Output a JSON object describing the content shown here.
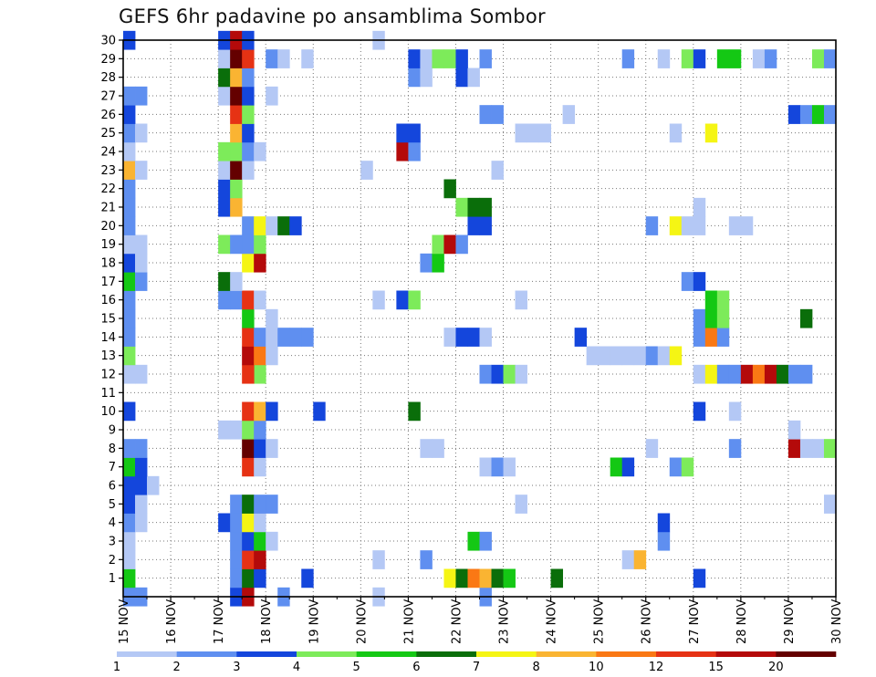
{
  "chart_data": {
    "type": "heatmap",
    "title": "GEFS 6hr padavine po ansamblima Sombor",
    "xlabel": "",
    "ylabel": "",
    "x_ticks": [
      "15 NOV",
      "16 NOV",
      "17 NOV",
      "18 NOV",
      "19 NOV",
      "20 NOV",
      "21 NOV",
      "22 NOV",
      "23 NOV",
      "24 NOV",
      "25 NOV",
      "26 NOV",
      "27 NOV",
      "28 NOV",
      "29 NOV",
      "30 NOV"
    ],
    "y_ticks": [
      1,
      2,
      3,
      4,
      5,
      6,
      7,
      8,
      9,
      10,
      11,
      12,
      13,
      14,
      15,
      16,
      17,
      18,
      19,
      20,
      21,
      22,
      23,
      24,
      25,
      26,
      27,
      28,
      29,
      30
    ],
    "x_range_steps_6h": [
      0,
      60
    ],
    "y_range_members": [
      0,
      30
    ],
    "grid": "dotted",
    "colorbar": {
      "labels": [
        "1",
        "2",
        "3",
        "4",
        "5",
        "6",
        "7",
        "8",
        "10",
        "12",
        "15",
        "20"
      ],
      "colors": [
        "#b4c8f5",
        "#5f8ff0",
        "#1446dc",
        "#7deb5a",
        "#14c814",
        "#0a6e0a",
        "#f5f514",
        "#fab432",
        "#fa7814",
        "#e63214",
        "#b40a0a",
        "#640000"
      ]
    },
    "cells": [
      [
        0,
        0,
        2
      ],
      [
        1,
        0,
        2
      ],
      [
        9,
        0,
        3
      ],
      [
        10,
        0,
        11
      ],
      [
        13,
        0,
        2
      ],
      [
        21,
        0,
        1
      ],
      [
        30,
        0,
        2
      ],
      [
        36,
        1,
        6
      ],
      [
        0,
        1,
        5
      ],
      [
        9,
        1,
        2
      ],
      [
        10,
        1,
        6
      ],
      [
        11,
        1,
        3
      ],
      [
        15,
        1,
        3
      ],
      [
        27,
        1,
        7
      ],
      [
        28,
        1,
        6
      ],
      [
        29,
        1,
        9
      ],
      [
        30,
        1,
        8
      ],
      [
        31,
        1,
        6
      ],
      [
        32,
        1,
        5
      ],
      [
        48,
        1,
        3
      ],
      [
        0,
        2,
        1
      ],
      [
        9,
        2,
        2
      ],
      [
        10,
        2,
        10
      ],
      [
        11,
        2,
        11
      ],
      [
        21,
        2,
        1
      ],
      [
        25,
        2,
        2
      ],
      [
        42,
        2,
        1
      ],
      [
        43,
        2,
        8
      ],
      [
        0,
        3,
        1
      ],
      [
        9,
        3,
        2
      ],
      [
        10,
        3,
        3
      ],
      [
        11,
        3,
        5
      ],
      [
        12,
        3,
        1
      ],
      [
        29,
        3,
        5
      ],
      [
        30,
        3,
        2
      ],
      [
        45,
        3,
        2
      ],
      [
        0,
        4,
        2
      ],
      [
        1,
        4,
        1
      ],
      [
        8,
        4,
        3
      ],
      [
        9,
        4,
        2
      ],
      [
        10,
        4,
        7
      ],
      [
        11,
        4,
        1
      ],
      [
        45,
        4,
        3
      ],
      [
        0,
        5,
        3
      ],
      [
        1,
        5,
        1
      ],
      [
        9,
        5,
        2
      ],
      [
        10,
        5,
        6
      ],
      [
        11,
        5,
        2
      ],
      [
        12,
        5,
        2
      ],
      [
        33,
        5,
        1
      ],
      [
        59,
        5,
        1
      ],
      [
        0,
        6,
        3
      ],
      [
        1,
        6,
        3
      ],
      [
        2,
        6,
        1
      ],
      [
        0,
        7,
        5
      ],
      [
        1,
        7,
        3
      ],
      [
        10,
        7,
        10
      ],
      [
        11,
        7,
        1
      ],
      [
        30,
        7,
        1
      ],
      [
        31,
        7,
        2
      ],
      [
        32,
        7,
        1
      ],
      [
        41,
        7,
        5
      ],
      [
        42,
        7,
        3
      ],
      [
        46,
        7,
        2
      ],
      [
        47,
        7,
        4
      ],
      [
        0,
        8,
        2
      ],
      [
        1,
        8,
        2
      ],
      [
        10,
        8,
        12
      ],
      [
        11,
        8,
        3
      ],
      [
        12,
        8,
        1
      ],
      [
        25,
        8,
        1
      ],
      [
        26,
        8,
        1
      ],
      [
        44,
        8,
        1
      ],
      [
        51,
        8,
        2
      ],
      [
        56,
        8,
        11
      ],
      [
        57,
        8,
        1
      ],
      [
        58,
        8,
        1
      ],
      [
        59,
        8,
        4
      ],
      [
        8,
        9,
        1
      ],
      [
        9,
        9,
        1
      ],
      [
        10,
        9,
        4
      ],
      [
        11,
        9,
        2
      ],
      [
        56,
        9,
        1
      ],
      [
        0,
        10,
        3
      ],
      [
        10,
        10,
        10
      ],
      [
        11,
        10,
        8
      ],
      [
        12,
        10,
        3
      ],
      [
        16,
        10,
        3
      ],
      [
        24,
        10,
        6
      ],
      [
        48,
        10,
        3
      ],
      [
        51,
        10,
        1
      ],
      [
        11,
        12,
        4
      ],
      [
        0,
        12,
        1
      ],
      [
        1,
        12,
        1
      ],
      [
        10,
        12,
        10
      ],
      [
        30,
        12,
        2
      ],
      [
        31,
        12,
        3
      ],
      [
        32,
        12,
        4
      ],
      [
        33,
        12,
        1
      ],
      [
        48,
        12,
        1
      ],
      [
        49,
        12,
        7
      ],
      [
        50,
        12,
        2
      ],
      [
        51,
        12,
        2
      ],
      [
        52,
        12,
        11
      ],
      [
        53,
        12,
        9
      ],
      [
        54,
        12,
        11
      ],
      [
        55,
        12,
        6
      ],
      [
        56,
        12,
        2
      ],
      [
        57,
        12,
        2
      ],
      [
        0,
        13,
        4
      ],
      [
        10,
        13,
        11
      ],
      [
        11,
        13,
        9
      ],
      [
        12,
        13,
        1
      ],
      [
        39,
        13,
        1
      ],
      [
        40,
        13,
        1
      ],
      [
        41,
        13,
        1
      ],
      [
        42,
        13,
        1
      ],
      [
        43,
        13,
        1
      ],
      [
        44,
        13,
        2
      ],
      [
        45,
        13,
        1
      ],
      [
        46,
        13,
        7
      ],
      [
        0,
        14,
        2
      ],
      [
        10,
        14,
        10
      ],
      [
        11,
        14,
        2
      ],
      [
        12,
        14,
        1
      ],
      [
        13,
        14,
        2
      ],
      [
        14,
        14,
        2
      ],
      [
        15,
        14,
        2
      ],
      [
        27,
        14,
        1
      ],
      [
        28,
        14,
        3
      ],
      [
        29,
        14,
        3
      ],
      [
        30,
        14,
        1
      ],
      [
        38,
        14,
        3
      ],
      [
        48,
        14,
        2
      ],
      [
        49,
        14,
        9
      ],
      [
        50,
        14,
        2
      ],
      [
        0,
        15,
        2
      ],
      [
        10,
        15,
        5
      ],
      [
        12,
        15,
        1
      ],
      [
        48,
        15,
        2
      ],
      [
        49,
        15,
        5
      ],
      [
        50,
        15,
        4
      ],
      [
        57,
        15,
        6
      ],
      [
        0,
        16,
        2
      ],
      [
        8,
        16,
        2
      ],
      [
        9,
        16,
        2
      ],
      [
        10,
        16,
        10
      ],
      [
        11,
        16,
        1
      ],
      [
        21,
        16,
        1
      ],
      [
        23,
        16,
        3
      ],
      [
        24,
        16,
        4
      ],
      [
        33,
        16,
        1
      ],
      [
        49,
        16,
        5
      ],
      [
        50,
        16,
        4
      ],
      [
        0,
        17,
        5
      ],
      [
        1,
        17,
        2
      ],
      [
        8,
        17,
        6
      ],
      [
        9,
        17,
        1
      ],
      [
        47,
        17,
        2
      ],
      [
        48,
        17,
        3
      ],
      [
        0,
        18,
        3
      ],
      [
        1,
        18,
        1
      ],
      [
        10,
        18,
        7
      ],
      [
        11,
        18,
        11
      ],
      [
        25,
        18,
        2
      ],
      [
        26,
        18,
        5
      ],
      [
        0,
        19,
        1
      ],
      [
        1,
        19,
        1
      ],
      [
        8,
        19,
        4
      ],
      [
        9,
        19,
        2
      ],
      [
        10,
        19,
        2
      ],
      [
        11,
        19,
        4
      ],
      [
        26,
        19,
        4
      ],
      [
        27,
        19,
        11
      ],
      [
        28,
        19,
        2
      ],
      [
        0,
        20,
        2
      ],
      [
        10,
        20,
        2
      ],
      [
        11,
        20,
        7
      ],
      [
        12,
        20,
        1
      ],
      [
        13,
        20,
        6
      ],
      [
        14,
        20,
        3
      ],
      [
        29,
        20,
        3
      ],
      [
        30,
        20,
        3
      ],
      [
        44,
        20,
        2
      ],
      [
        46,
        20,
        7
      ],
      [
        47,
        20,
        1
      ],
      [
        48,
        20,
        1
      ],
      [
        51,
        20,
        1
      ],
      [
        52,
        20,
        1
      ],
      [
        0,
        21,
        2
      ],
      [
        8,
        21,
        3
      ],
      [
        9,
        21,
        8
      ],
      [
        28,
        21,
        4
      ],
      [
        29,
        21,
        6
      ],
      [
        30,
        21,
        6
      ],
      [
        48,
        21,
        1
      ],
      [
        0,
        22,
        2
      ],
      [
        8,
        22,
        3
      ],
      [
        9,
        22,
        4
      ],
      [
        27,
        22,
        6
      ],
      [
        0,
        23,
        8
      ],
      [
        1,
        23,
        1
      ],
      [
        8,
        23,
        1
      ],
      [
        9,
        23,
        12
      ],
      [
        10,
        23,
        1
      ],
      [
        20,
        23,
        1
      ],
      [
        31,
        23,
        1
      ],
      [
        0,
        24,
        1
      ],
      [
        8,
        24,
        4
      ],
      [
        9,
        24,
        4
      ],
      [
        10,
        24,
        2
      ],
      [
        11,
        24,
        1
      ],
      [
        23,
        24,
        11
      ],
      [
        24,
        24,
        2
      ],
      [
        0,
        25,
        2
      ],
      [
        1,
        25,
        1
      ],
      [
        9,
        25,
        8
      ],
      [
        10,
        25,
        3
      ],
      [
        23,
        25,
        3
      ],
      [
        24,
        25,
        3
      ],
      [
        33,
        25,
        1
      ],
      [
        34,
        25,
        1
      ],
      [
        35,
        25,
        1
      ],
      [
        46,
        25,
        1
      ],
      [
        49,
        25,
        7
      ],
      [
        0,
        26,
        3
      ],
      [
        9,
        26,
        10
      ],
      [
        10,
        26,
        4
      ],
      [
        30,
        26,
        2
      ],
      [
        31,
        26,
        2
      ],
      [
        37,
        26,
        1
      ],
      [
        56,
        26,
        3
      ],
      [
        57,
        26,
        2
      ],
      [
        58,
        26,
        5
      ],
      [
        59,
        26,
        2
      ],
      [
        0,
        27,
        2
      ],
      [
        1,
        27,
        2
      ],
      [
        8,
        27,
        1
      ],
      [
        9,
        27,
        12
      ],
      [
        10,
        27,
        3
      ],
      [
        12,
        27,
        1
      ],
      [
        8,
        28,
        6
      ],
      [
        9,
        28,
        8
      ],
      [
        10,
        28,
        2
      ],
      [
        24,
        28,
        2
      ],
      [
        25,
        28,
        1
      ],
      [
        28,
        28,
        3
      ],
      [
        29,
        28,
        1
      ],
      [
        8,
        29,
        1
      ],
      [
        9,
        29,
        12
      ],
      [
        10,
        29,
        10
      ],
      [
        12,
        29,
        2
      ],
      [
        13,
        29,
        1
      ],
      [
        15,
        29,
        1
      ],
      [
        24,
        29,
        3
      ],
      [
        25,
        29,
        1
      ],
      [
        26,
        29,
        4
      ],
      [
        27,
        29,
        4
      ],
      [
        28,
        29,
        3
      ],
      [
        30,
        29,
        2
      ],
      [
        42,
        29,
        2
      ],
      [
        45,
        29,
        1
      ],
      [
        47,
        29,
        4
      ],
      [
        48,
        29,
        3
      ],
      [
        50,
        29,
        5
      ],
      [
        51,
        29,
        5
      ],
      [
        53,
        29,
        1
      ],
      [
        54,
        29,
        2
      ],
      [
        58,
        29,
        4
      ],
      [
        59,
        29,
        2
      ],
      [
        0,
        30,
        3
      ],
      [
        8,
        30,
        3
      ],
      [
        9,
        30,
        11
      ],
      [
        10,
        30,
        3
      ],
      [
        21,
        30,
        1
      ]
    ]
  }
}
